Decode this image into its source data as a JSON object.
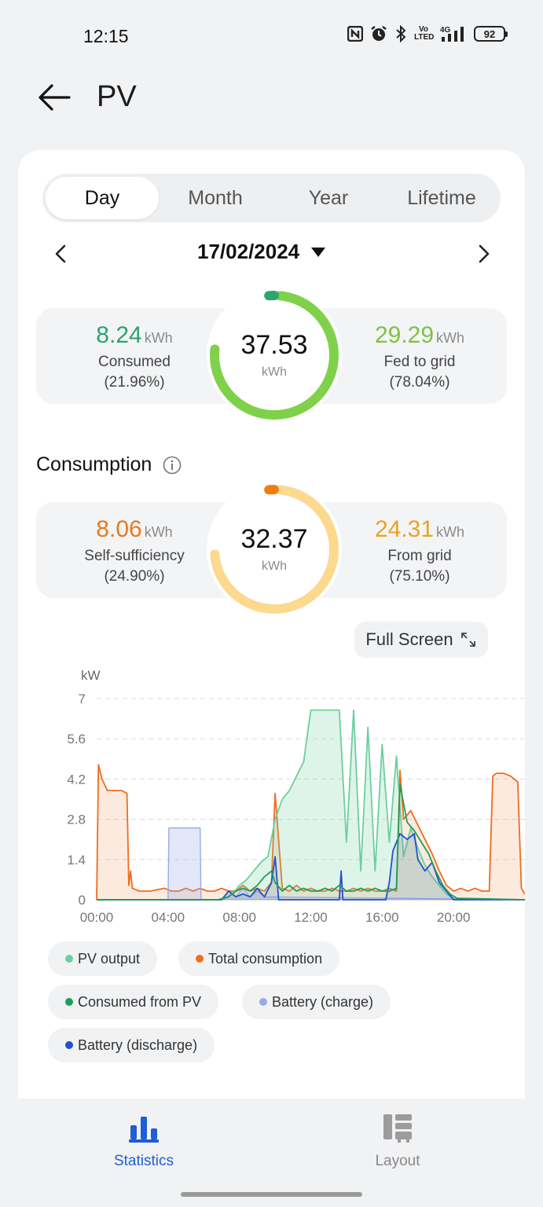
{
  "status_bar": {
    "time": "12:15",
    "battery": "92",
    "network": "4G",
    "volte": "Vo LTE"
  },
  "header": {
    "title": "PV"
  },
  "tabs": [
    {
      "label": "Day",
      "active": true
    },
    {
      "label": "Month",
      "active": false
    },
    {
      "label": "Year",
      "active": false
    },
    {
      "label": "Lifetime",
      "active": false
    }
  ],
  "date": "17/02/2024",
  "yield": {
    "total": "37.53",
    "unit": "kWh",
    "left": {
      "value": "8.24",
      "unit": "kWh",
      "label": "Consumed",
      "percent": "(21.96%)",
      "color": "#2aa56b",
      "fraction": 0.2196
    },
    "right": {
      "value": "29.29",
      "unit": "kWh",
      "label": "Fed to grid",
      "percent": "(78.04%)",
      "color": "#7fd14a"
    }
  },
  "consumption": {
    "title": "Consumption",
    "total": "32.37",
    "unit": "kWh",
    "left": {
      "value": "8.06",
      "unit": "kWh",
      "label": "Self-sufficiency",
      "percent": "(24.90%)",
      "color": "#f07d12",
      "fraction": 0.249
    },
    "right": {
      "value": "24.31",
      "unit": "kWh",
      "label": "From grid",
      "percent": "(75.10%)",
      "color": "#e9a326",
      "ring_color": "#fcd98f"
    }
  },
  "fullscreen_label": "Full Screen",
  "chart_data": {
    "type": "line",
    "ylabel": "kW",
    "ylim": [
      0,
      7
    ],
    "yticks": [
      "0",
      "1.4",
      "2.8",
      "4.2",
      "5.6",
      "7"
    ],
    "xlim": [
      0,
      24
    ],
    "xticks": [
      "00:00",
      "04:00",
      "08:00",
      "12:00",
      "16:00",
      "20:00"
    ],
    "grid": true,
    "series": [
      {
        "name": "PV output",
        "color": "#6ccf9c",
        "x": [
          0,
          6.8,
          7.2,
          7.6,
          8.0,
          8.4,
          8.8,
          9.2,
          9.6,
          10.0,
          10.4,
          10.8,
          11.2,
          11.6,
          12.0,
          12.4,
          12.8,
          13.2,
          13.6,
          14.0,
          14.4,
          14.8,
          15.2,
          15.6,
          16.0,
          16.4,
          16.8,
          17.2,
          17.6,
          18.0,
          18.4,
          18.8,
          19.2,
          19.6,
          20.0,
          24
        ],
        "y": [
          0,
          0,
          0.05,
          0.2,
          0.5,
          0.7,
          1.0,
          1.3,
          1.5,
          2.8,
          3.5,
          3.8,
          4.3,
          4.8,
          6.6,
          6.6,
          6.6,
          6.6,
          6.6,
          2.0,
          6.6,
          1.0,
          6.0,
          1.0,
          5.4,
          2.0,
          5.0,
          1.5,
          2.5,
          1.8,
          1.2,
          0.8,
          0.5,
          0.2,
          0.05,
          0
        ]
      },
      {
        "name": "Total consumption",
        "color": "#ee6d1f",
        "x": [
          0,
          0.1,
          0.3,
          0.6,
          1.0,
          1.4,
          1.7,
          1.8,
          1.9,
          2.0,
          2.4,
          3.0,
          3.8,
          4.2,
          4.6,
          5.0,
          5.4,
          5.8,
          6.2,
          6.6,
          7.0,
          7.4,
          7.8,
          8.2,
          8.6,
          9.0,
          9.4,
          9.8,
          10.0,
          10.4,
          10.8,
          11.2,
          11.6,
          12.0,
          12.4,
          12.8,
          13.2,
          13.6,
          14.0,
          14.4,
          14.8,
          15.2,
          15.6,
          16.0,
          16.4,
          16.8,
          17.0,
          17.2,
          17.6,
          18.0,
          18.4,
          18.8,
          19.2,
          19.6,
          20.0,
          20.4,
          20.8,
          21.2,
          21.6,
          22.0,
          22.2,
          22.4,
          22.8,
          23.2,
          23.6,
          23.8,
          24.0
        ],
        "y": [
          0,
          4.7,
          4.2,
          3.8,
          3.8,
          3.8,
          3.7,
          0.5,
          1.0,
          0.4,
          0.3,
          0.3,
          0.4,
          0.3,
          0.3,
          0.4,
          0.3,
          0.4,
          0.3,
          0.3,
          0.4,
          0.3,
          0.3,
          0.5,
          0.3,
          0.4,
          0.3,
          0.6,
          3.7,
          0.4,
          0.3,
          0.5,
          0.3,
          0.4,
          0.3,
          0.3,
          0.4,
          0.3,
          0.3,
          0.4,
          0.3,
          0.4,
          0.3,
          0.3,
          0.4,
          0.3,
          4.5,
          2.8,
          3.1,
          2.6,
          2.1,
          1.6,
          1.0,
          0.5,
          0.3,
          0.4,
          0.3,
          0.4,
          0.3,
          0.3,
          4.3,
          4.4,
          4.4,
          4.3,
          4.1,
          0.4,
          0.2
        ]
      },
      {
        "name": "Consumed from PV",
        "color": "#1f9d57",
        "x": [
          0,
          6.8,
          7.4,
          7.8,
          8.2,
          8.6,
          9.0,
          9.4,
          9.8,
          10.0,
          10.4,
          10.8,
          11.2,
          11.6,
          12.0,
          12.4,
          12.8,
          13.2,
          13.6,
          14.0,
          14.4,
          14.8,
          15.2,
          15.6,
          16.0,
          16.4,
          16.8,
          17.0,
          17.4,
          17.8,
          18.2,
          18.6,
          19.0,
          19.4,
          19.8,
          20.2,
          24
        ],
        "y": [
          0,
          0,
          0.1,
          0.3,
          0.4,
          0.3,
          0.5,
          0.8,
          1.0,
          0.6,
          0.3,
          0.5,
          0.3,
          0.4,
          0.3,
          0.3,
          0.4,
          0.3,
          0.5,
          0.3,
          0.3,
          0.4,
          0.3,
          0.4,
          0.3,
          0.3,
          0.4,
          4.0,
          2.7,
          2.4,
          2.0,
          1.6,
          1.0,
          0.5,
          0.2,
          0.05,
          0
        ]
      },
      {
        "name": "Battery (charge)",
        "color": "#9aaae6",
        "x": [
          0,
          4.0,
          4.05,
          5.8,
          5.85,
          7.0,
          7.4,
          7.8,
          8.2,
          8.6,
          9.0,
          9.4,
          24
        ],
        "y": [
          0,
          0,
          2.5,
          2.5,
          0,
          0,
          0.3,
          0.1,
          0.4,
          0.1,
          0.3,
          0.1,
          0
        ]
      },
      {
        "name": "Battery (discharge)",
        "color": "#2351c9",
        "x": [
          0,
          7.0,
          7.4,
          7.8,
          8.2,
          8.6,
          9.0,
          9.4,
          9.8,
          10.0,
          10.2,
          13.6,
          13.7,
          13.8,
          16.2,
          16.4,
          16.6,
          17.0,
          17.4,
          17.8,
          18.0,
          18.4,
          18.8,
          19.2,
          19.6,
          20.0,
          24
        ],
        "y": [
          0,
          0,
          0.3,
          0.1,
          0.2,
          0.1,
          0.4,
          0.1,
          0.6,
          1.5,
          0,
          0,
          1.0,
          0,
          0,
          0.6,
          1.7,
          2.3,
          2.1,
          2.3,
          1.4,
          1.0,
          1.3,
          0.6,
          0.3,
          0,
          0
        ]
      }
    ]
  },
  "legend": [
    {
      "label": "PV output",
      "color": "#6ccf9c"
    },
    {
      "label": "Total consumption",
      "color": "#ee6d1f"
    },
    {
      "label": "Consumed from PV",
      "color": "#1f9d57"
    },
    {
      "label": "Battery (charge)",
      "color": "#9aaae6"
    },
    {
      "label": "Battery (discharge)",
      "color": "#2351c9"
    }
  ],
  "bottom_nav": [
    {
      "label": "Statistics",
      "active": true,
      "icon": "bar-chart-icon"
    },
    {
      "label": "Layout",
      "active": false,
      "icon": "layout-icon"
    }
  ]
}
